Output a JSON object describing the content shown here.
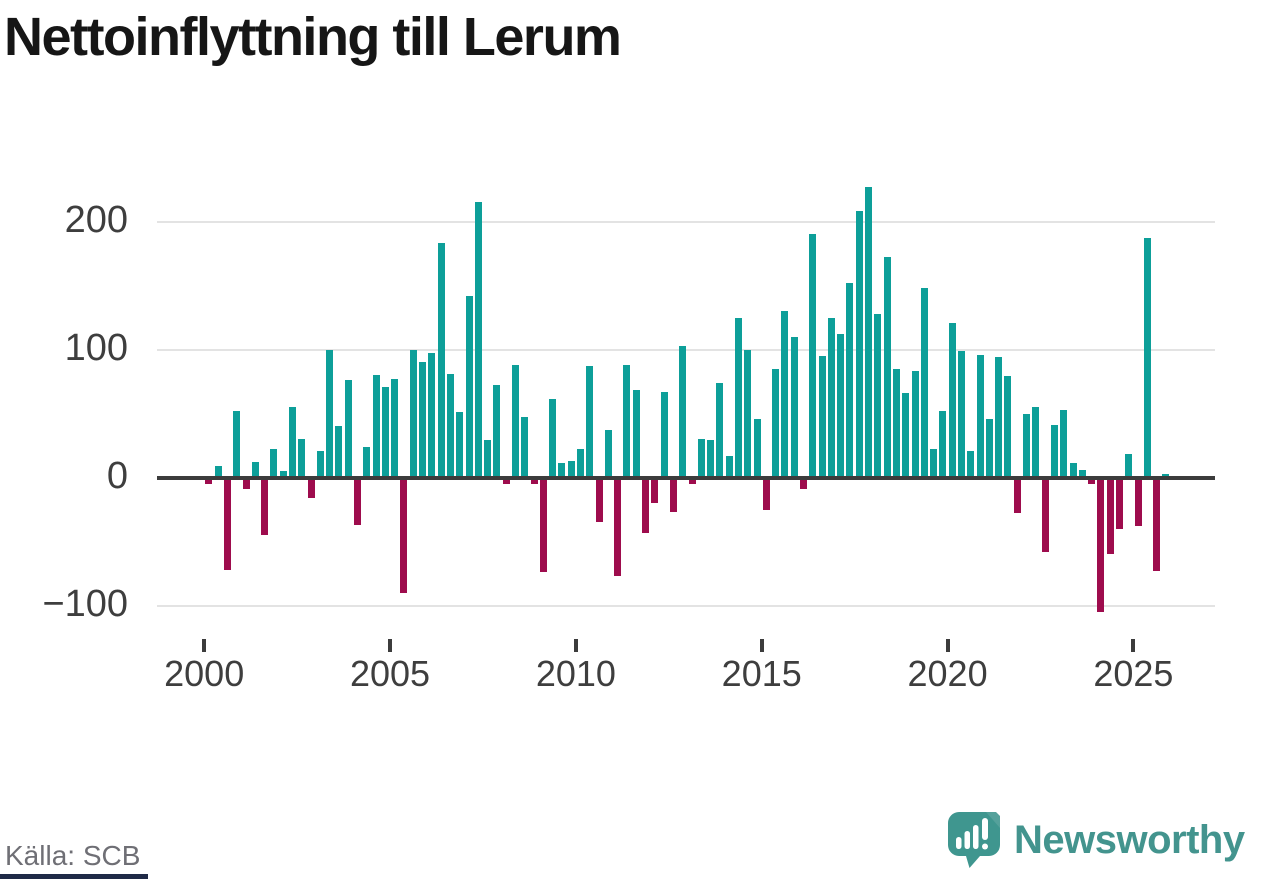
{
  "title": "Nettoinflyttning till Lerum",
  "source": "Källa: SCB",
  "branding": {
    "name": "Newsworthy",
    "icon": "speech-bubble-bar-chart-icon"
  },
  "colors": {
    "positive": "#0d9f99",
    "negative": "#9e0c4d",
    "brand_teal": "#43948e",
    "zero_line": "#3c3c3c",
    "gridline": "#e3e3e3",
    "axis_text": "#3e3e3e",
    "source_text": "#6f6f75",
    "title_text": "#161616",
    "bottom_strip": "#1f2a47"
  },
  "chart_data": {
    "type": "bar",
    "title": "Nettoinflyttning till Lerum",
    "frequency": "quarterly",
    "start_period": "2000-Q1",
    "end_period": "2025-Q4",
    "values": [
      -5,
      9,
      -72,
      52,
      -9,
      12,
      -45,
      22,
      5,
      55,
      30,
      -16,
      21,
      100,
      40,
      76,
      -37,
      24,
      80,
      71,
      77,
      -90,
      100,
      90,
      97,
      183,
      81,
      51,
      142,
      215,
      29,
      72,
      -5,
      88,
      47,
      -5,
      -74,
      61,
      11,
      13,
      22,
      87,
      -35,
      37,
      -77,
      88,
      68,
      -43,
      -20,
      67,
      -27,
      103,
      -5,
      30,
      29,
      74,
      17,
      125,
      100,
      46,
      -25,
      85,
      130,
      110,
      -9,
      190,
      95,
      125,
      112,
      152,
      208,
      227,
      128,
      172,
      85,
      66,
      83,
      148,
      22,
      52,
      121,
      99,
      21,
      96,
      46,
      94,
      79,
      -28,
      50,
      55,
      -58,
      41,
      53,
      11,
      6,
      -5,
      -105,
      -60,
      -40,
      18,
      -38,
      187,
      -73,
      3
    ],
    "y_ticks": [
      -100,
      0,
      100,
      200
    ],
    "x_ticks": [
      2000,
      2005,
      2010,
      2015,
      2020,
      2025
    ],
    "ylim": [
      -130,
      245
    ],
    "grid": "horizontal",
    "legend": "none",
    "positive_color": "#0d9f99",
    "negative_color": "#9e0c4d"
  }
}
